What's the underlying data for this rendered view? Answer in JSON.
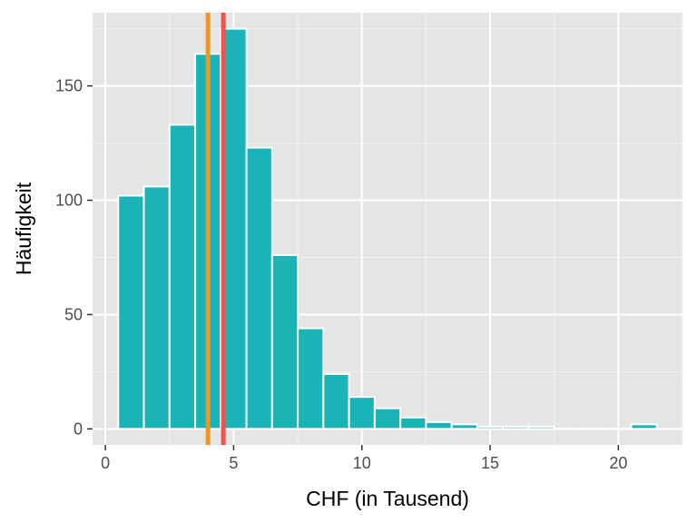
{
  "chart_data": {
    "type": "bar",
    "xlabel": "CHF (in Tausend)",
    "ylabel": "Häufigkeit",
    "xlim": [
      -0.5,
      22.5
    ],
    "ylim": [
      -7,
      182
    ],
    "x_ticks": [
      0,
      5,
      10,
      15,
      20
    ],
    "y_ticks": [
      0,
      50,
      100,
      150
    ],
    "bin_width": 1,
    "bins": [
      {
        "x": 1,
        "count": 102
      },
      {
        "x": 2,
        "count": 106
      },
      {
        "x": 3,
        "count": 133
      },
      {
        "x": 4,
        "count": 164
      },
      {
        "x": 5,
        "count": 175
      },
      {
        "x": 6,
        "count": 123
      },
      {
        "x": 7,
        "count": 76
      },
      {
        "x": 8,
        "count": 44
      },
      {
        "x": 9,
        "count": 24
      },
      {
        "x": 10,
        "count": 14
      },
      {
        "x": 11,
        "count": 9
      },
      {
        "x": 12,
        "count": 5
      },
      {
        "x": 13,
        "count": 3
      },
      {
        "x": 14,
        "count": 2
      },
      {
        "x": 15,
        "count": 1
      },
      {
        "x": 16,
        "count": 1
      },
      {
        "x": 17,
        "count": 1
      },
      {
        "x": 18,
        "count": 0
      },
      {
        "x": 19,
        "count": 0
      },
      {
        "x": 20,
        "count": 0
      },
      {
        "x": 21,
        "count": 2
      }
    ],
    "bar_color": "#1ab4b8",
    "reference_lines": [
      {
        "x": 4.0,
        "color": "#f7941d"
      },
      {
        "x": 4.6,
        "color": "#ef5350"
      }
    ],
    "panel_background": "#e5e5e5",
    "grid": true
  }
}
